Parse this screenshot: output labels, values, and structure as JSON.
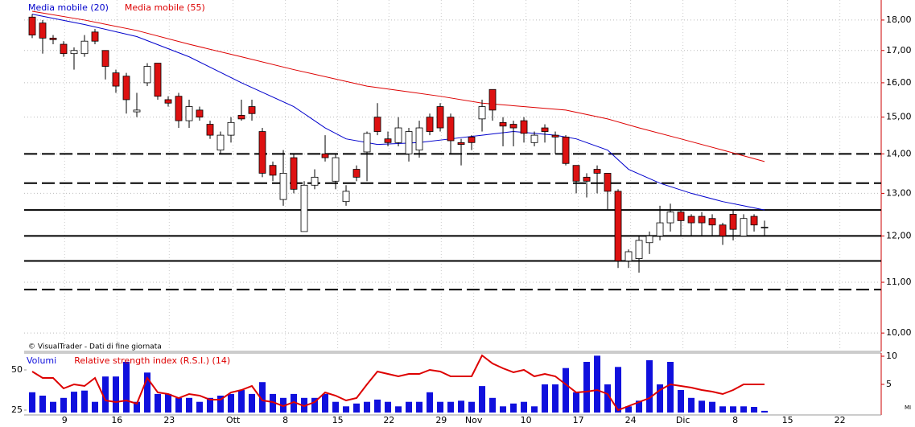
{
  "chart_data": [
    {
      "type": "candlestick",
      "annotation": "© VisualTrader - Dati di fine giornata",
      "open": [
        18.1,
        17.9,
        17.4,
        17.2,
        16.9,
        16.9,
        17.6,
        17.0,
        16.3,
        16.2,
        15.15,
        16.0,
        16.6,
        15.5,
        15.6,
        14.9,
        15.2,
        14.8,
        14.1,
        14.5,
        15.05,
        15.3,
        14.6,
        13.7,
        12.85,
        13.9,
        12.1,
        13.2,
        14.0,
        13.3,
        12.8,
        13.6,
        14.05,
        15.0,
        14.4,
        14.3,
        14.0,
        14.1,
        15.0,
        15.3,
        15.0,
        14.3,
        14.45,
        14.95,
        15.8,
        14.85,
        14.8,
        14.9,
        14.3,
        14.7,
        14.5,
        14.45,
        13.7,
        13.4,
        13.6,
        13.5,
        13.05,
        11.45,
        11.5,
        11.85,
        12.0,
        12.3,
        12.55,
        12.45,
        12.45,
        12.4,
        12.25,
        12.5,
        12.0,
        12.45,
        12.2
      ],
      "high": [
        18.2,
        18.0,
        17.5,
        17.3,
        17.1,
        17.5,
        17.7,
        17.0,
        16.4,
        16.3,
        15.7,
        16.6,
        16.6,
        15.6,
        15.7,
        15.5,
        15.3,
        14.9,
        14.6,
        15.0,
        15.5,
        15.5,
        14.7,
        13.8,
        14.1,
        14.0,
        13.3,
        13.6,
        14.5,
        14.0,
        13.2,
        13.7,
        14.6,
        15.4,
        14.6,
        15.0,
        14.7,
        14.9,
        15.1,
        15.4,
        15.1,
        14.4,
        14.5,
        15.5,
        15.8,
        15.0,
        14.9,
        15.0,
        14.6,
        14.8,
        14.6,
        14.5,
        13.7,
        13.5,
        13.7,
        13.5,
        13.1,
        11.7,
        12.0,
        12.1,
        12.7,
        12.75,
        12.6,
        12.5,
        12.55,
        12.5,
        12.3,
        12.6,
        12.5,
        12.5,
        12.35
      ],
      "low": [
        17.4,
        16.9,
        17.2,
        16.8,
        16.4,
        16.8,
        17.2,
        16.1,
        15.7,
        15.1,
        15.0,
        15.9,
        15.5,
        15.3,
        14.7,
        14.7,
        14.9,
        14.4,
        14.0,
        14.3,
        14.9,
        14.9,
        13.4,
        13.3,
        12.7,
        13.0,
        12.1,
        13.1,
        13.8,
        13.1,
        12.7,
        13.3,
        13.3,
        14.5,
        14.2,
        14.2,
        13.8,
        13.9,
        14.5,
        14.6,
        14.0,
        13.7,
        14.1,
        14.6,
        14.9,
        14.2,
        14.2,
        14.3,
        14.2,
        14.3,
        14.0,
        13.7,
        13.0,
        12.9,
        13.0,
        12.6,
        11.3,
        11.3,
        11.2,
        11.6,
        11.9,
        12.1,
        12.0,
        12.0,
        12.0,
        12.0,
        11.8,
        11.9,
        12.0,
        12.1,
        12.0
      ],
      "close": [
        17.5,
        17.4,
        17.35,
        16.9,
        17.0,
        17.3,
        17.3,
        16.5,
        15.9,
        15.5,
        15.2,
        16.5,
        15.6,
        15.4,
        14.9,
        15.3,
        15.0,
        14.5,
        14.5,
        14.85,
        14.95,
        15.1,
        13.5,
        13.45,
        13.5,
        13.1,
        13.2,
        13.4,
        13.9,
        13.9,
        13.05,
        13.4,
        14.55,
        14.6,
        14.3,
        14.7,
        14.6,
        14.7,
        14.6,
        14.7,
        14.35,
        14.25,
        14.3,
        15.3,
        15.2,
        14.75,
        14.7,
        14.55,
        14.5,
        14.6,
        14.45,
        13.75,
        13.3,
        13.3,
        13.5,
        13.05,
        11.45,
        11.65,
        11.9,
        12.0,
        12.3,
        12.55,
        12.35,
        12.3,
        12.3,
        12.25,
        12.0,
        12.15,
        12.4,
        12.25,
        12.2
      ],
      "series": [
        {
          "name": "Media mobile (20)",
          "color": "#0000cc",
          "x": [
            0,
            5,
            10,
            15,
            20,
            25,
            28,
            30,
            33,
            37,
            40,
            43,
            46,
            50,
            52,
            55,
            57,
            60,
            63,
            66,
            68,
            70
          ],
          "values": [
            18.2,
            17.85,
            17.45,
            16.8,
            16.0,
            15.3,
            14.7,
            14.4,
            14.25,
            14.3,
            14.4,
            14.5,
            14.6,
            14.5,
            14.4,
            14.1,
            13.6,
            13.25,
            13.0,
            12.8,
            12.7,
            12.6
          ]
        },
        {
          "name": "Media mobile (55)",
          "color": "#dd0000",
          "x": [
            0,
            5,
            10,
            15,
            20,
            25,
            32,
            39,
            43,
            51,
            55,
            58,
            62,
            66,
            70
          ],
          "values": [
            18.3,
            18.0,
            17.65,
            17.2,
            16.8,
            16.4,
            15.9,
            15.6,
            15.4,
            15.2,
            14.95,
            14.7,
            14.4,
            14.1,
            13.8
          ]
        }
      ],
      "levels": [
        {
          "value": 14.0,
          "style": "dashed"
        },
        {
          "value": 13.25,
          "style": "dashed"
        },
        {
          "value": 12.6,
          "style": "solid"
        },
        {
          "value": 12.0,
          "style": "solid"
        },
        {
          "value": 11.45,
          "style": "solid"
        },
        {
          "value": 10.85,
          "style": "dashed"
        }
      ],
      "yscale": "log",
      "ylim": [
        9.69,
        18.55
      ],
      "yticks": [
        {
          "value": 10,
          "label": "10,00"
        },
        {
          "value": 11,
          "label": "11,00"
        },
        {
          "value": 12,
          "label": "12,00"
        },
        {
          "value": 13,
          "label": "13,00"
        },
        {
          "value": 14,
          "label": "14,00"
        },
        {
          "value": 15,
          "label": "15,00"
        },
        {
          "value": 16,
          "label": "16,00"
        },
        {
          "value": 17,
          "label": "17,00"
        },
        {
          "value": 18,
          "label": "18,00"
        }
      ],
      "xlim": [
        -0.77,
        80.92
      ],
      "xticks": [
        {
          "value": 3.1,
          "label": "9"
        },
        {
          "value": 8.1,
          "label": "16"
        },
        {
          "value": 13.1,
          "label": "23"
        },
        {
          "value": 19.2,
          "label": "Ott"
        },
        {
          "value": 24.2,
          "label": "8"
        },
        {
          "value": 29.2,
          "label": "15"
        },
        {
          "value": 34.1,
          "label": "22"
        },
        {
          "value": 39.1,
          "label": "29"
        },
        {
          "value": 42.2,
          "label": "Nov"
        },
        {
          "value": 47.2,
          "label": "10"
        },
        {
          "value": 52.2,
          "label": "17"
        },
        {
          "value": 57.2,
          "label": "24"
        },
        {
          "value": 62.2,
          "label": "Dic"
        },
        {
          "value": 67.2,
          "label": "8"
        },
        {
          "value": 72.2,
          "label": "15"
        },
        {
          "value": 77.2,
          "label": "22"
        }
      ],
      "grid": true
    },
    {
      "type": "combo",
      "series": [
        {
          "name": "Volumi",
          "color": "#1010dd",
          "kind": "bar",
          "axis": "y2",
          "values": [
            3.6,
            3.0,
            1.9,
            2.6,
            3.7,
            3.9,
            1.9,
            6.4,
            6.4,
            9.0,
            1.9,
            7.1,
            3.3,
            3.3,
            2.6,
            2.6,
            1.9,
            2.6,
            3.0,
            3.3,
            4.0,
            3.3,
            5.4,
            3.3,
            2.6,
            3.3,
            2.6,
            2.6,
            3.3,
            1.9,
            1.1,
            1.6,
            1.9,
            2.3,
            1.9,
            1.1,
            1.9,
            1.9,
            3.6,
            1.9,
            1.9,
            2.1,
            1.9,
            4.7,
            2.6,
            1.1,
            1.6,
            1.9,
            1.1,
            5.0,
            5.0,
            7.9,
            3.6,
            9.0,
            10.1,
            5.0,
            8.1,
            1.1,
            2.1,
            9.3,
            5.0,
            9.0,
            4.0,
            2.6,
            2.1,
            1.9,
            1.1,
            1.1,
            1.1,
            1.0,
            0.3
          ]
        },
        {
          "name": "Relative strength index (R.S.I.) (14)",
          "color": "#dd0000",
          "kind": "line",
          "values": [
            49,
            45,
            45,
            38.5,
            41,
            40,
            45,
            31,
            30,
            31,
            29,
            45,
            36,
            35,
            32.5,
            35,
            34,
            31.5,
            31.5,
            36,
            37.5,
            40,
            31,
            30,
            27.5,
            30,
            27.5,
            30,
            36,
            34,
            31,
            32.5,
            41,
            49,
            47.5,
            46,
            47.5,
            47.5,
            50,
            49,
            46,
            46,
            46,
            59,
            54,
            51,
            48.5,
            50,
            46,
            47.5,
            46,
            41,
            36,
            36.5,
            37.5,
            35,
            25,
            27.5,
            30,
            32.5,
            37.5,
            41,
            40,
            39,
            37.5,
            36.5,
            35,
            37.5,
            41,
            41,
            41
          ]
        }
      ],
      "xlim": [
        -0.77,
        80.92
      ],
      "ylim": [
        20,
        60
      ],
      "yticks": [
        25,
        50
      ],
      "y2lim": [
        -1,
        10.43
      ],
      "y2ticks": [
        5,
        10
      ]
    }
  ],
  "corner_label": "MI"
}
